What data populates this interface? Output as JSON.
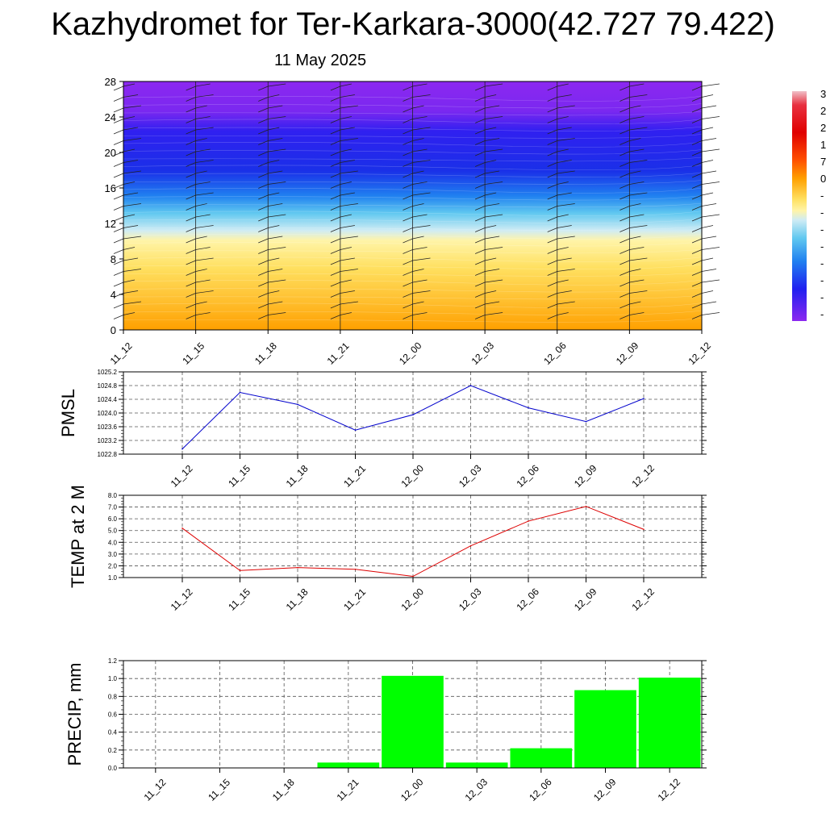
{
  "title": "Kazhydromet for Ter-Karkara-3000(42.727 79.422)",
  "subtitle": "11 May 2025",
  "chart_data": [
    {
      "type": "heatmap",
      "xlabel": "",
      "ylabel": "",
      "x_categories": [
        "11_12",
        "11_15",
        "11_18",
        "11_21",
        "12_00",
        "12_03",
        "12_06",
        "12_09",
        "12_12"
      ],
      "y_ticks": [
        0,
        4,
        8,
        12,
        16,
        20,
        24,
        28
      ],
      "ylim": [
        0,
        28
      ],
      "colorbar_labels": [
        "3",
        "2",
        "2",
        "1",
        "7",
        "0",
        "-",
        "-",
        "-",
        "-",
        "-",
        "-",
        "-",
        "-"
      ],
      "colors": {
        "top": "#8c28f0",
        "upper": "#2020f0",
        "mid": "#50c8f0",
        "light": "#c8ecf8",
        "pale_yellow": "#fff0a0",
        "bottom": "#ffa000"
      },
      "wind_barbs": true
    },
    {
      "type": "line",
      "ylabel": "PMSL",
      "x": [
        "11_12",
        "11_15",
        "11_18",
        "11_21",
        "12_00",
        "12_03",
        "12_06",
        "12_09",
        "12_12"
      ],
      "values": [
        1022.95,
        1024.6,
        1024.25,
        1023.5,
        1023.95,
        1024.8,
        1024.15,
        1023.75,
        1024.42
      ],
      "y_ticks": [
        "1022.8",
        "1023.2",
        "1023.6",
        "1024.0",
        "1024.4",
        "1024.8",
        "1025.2"
      ],
      "ylim": [
        1022.8,
        1025.2
      ],
      "color": "#0000cc",
      "grid": true
    },
    {
      "type": "line",
      "ylabel": "TEMP at 2 M",
      "x": [
        "11_12",
        "11_15",
        "11_18",
        "11_21",
        "12_00",
        "12_03",
        "12_06",
        "12_09",
        "12_12"
      ],
      "values": [
        5.2,
        1.6,
        1.85,
        1.7,
        1.1,
        3.7,
        5.8,
        7.05,
        5.1
      ],
      "y_ticks": [
        "1.0",
        "2.0",
        "3.0",
        "4.0",
        "5.0",
        "6.0",
        "7.0",
        "8.0"
      ],
      "ylim": [
        1.0,
        8.0
      ],
      "color": "#dd0000",
      "grid": true
    },
    {
      "type": "bar",
      "ylabel": "PRECIP, mm",
      "categories": [
        "11_12",
        "11_15",
        "11_18",
        "11_21",
        "12_00",
        "12_03",
        "12_06",
        "12_09",
        "12_12"
      ],
      "values": [
        0,
        0,
        0,
        0.06,
        1.03,
        0.06,
        0.22,
        0.87,
        1.01
      ],
      "y_ticks": [
        "0.0",
        "0.2",
        "0.4",
        "0.6",
        "0.8",
        "1.0",
        "1.2"
      ],
      "ylim": [
        0,
        1.2
      ],
      "color": "#00ff00",
      "grid": true
    }
  ]
}
